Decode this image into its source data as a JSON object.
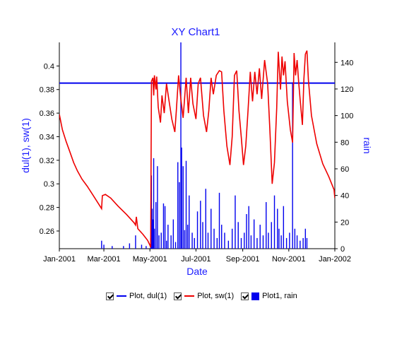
{
  "chart_data": {
    "type": "line",
    "title": "XY Chart1",
    "xlabel": "Date",
    "ylabel": "dul(1), sw(1)",
    "y2label": "rain",
    "x_range": [
      "2001-01-01",
      "2002-01-01"
    ],
    "x_ticks": [
      "Jan-2001",
      "Mar-2001",
      "May-2001",
      "Jul-2001",
      "Sep-2001",
      "Nov-2001",
      "Jan-2002"
    ],
    "ylim": [
      0.245,
      0.42
    ],
    "y_ticks": [
      "0.26",
      "0.28",
      "0.3",
      "0.32",
      "0.34",
      "0.36",
      "0.38",
      "0.4"
    ],
    "y2lim": [
      0,
      155
    ],
    "y2_ticks": [
      "0",
      "20",
      "40",
      "60",
      "80",
      "100",
      "120",
      "140"
    ],
    "grid": false,
    "legend_position": "bottom",
    "series": [
      {
        "name": "Plot, dul(1)",
        "axis": "left",
        "type": "line",
        "color": "#0000ee",
        "points": [
          [
            "2001-01-01",
            0.3855
          ],
          [
            "2002-01-01",
            0.3855
          ]
        ]
      },
      {
        "name": "Plot, sw(1)",
        "axis": "left",
        "type": "line",
        "color": "#ee0000",
        "points": [
          [
            "2001-01-01",
            0.359
          ],
          [
            "2001-01-05",
            0.346
          ],
          [
            "2001-01-10",
            0.336
          ],
          [
            "2001-01-15",
            0.327
          ],
          [
            "2001-01-20",
            0.318
          ],
          [
            "2001-01-25",
            0.311
          ],
          [
            "2001-01-31",
            0.304
          ],
          [
            "2001-02-07",
            0.298
          ],
          [
            "2001-02-14",
            0.291
          ],
          [
            "2001-02-21",
            0.284
          ],
          [
            "2001-02-26",
            0.279
          ],
          [
            "2001-02-27",
            0.29
          ],
          [
            "2001-03-03",
            0.291
          ],
          [
            "2001-03-10",
            0.288
          ],
          [
            "2001-03-20",
            0.281
          ],
          [
            "2001-03-31",
            0.274
          ],
          [
            "2001-04-10",
            0.267
          ],
          [
            "2001-04-12",
            0.265
          ],
          [
            "2001-04-13",
            0.272
          ],
          [
            "2001-04-15",
            0.262
          ],
          [
            "2001-04-22",
            0.257
          ],
          [
            "2001-04-28",
            0.252
          ],
          [
            "2001-05-01",
            0.248
          ],
          [
            "2001-05-02",
            0.246
          ],
          [
            "2001-05-03",
            0.387
          ],
          [
            "2001-05-05",
            0.39
          ],
          [
            "2001-05-06",
            0.375
          ],
          [
            "2001-05-07",
            0.392
          ],
          [
            "2001-05-09",
            0.38
          ],
          [
            "2001-05-10",
            0.391
          ],
          [
            "2001-05-12",
            0.365
          ],
          [
            "2001-05-15",
            0.352
          ],
          [
            "2001-05-17",
            0.375
          ],
          [
            "2001-05-20",
            0.36
          ],
          [
            "2001-05-23",
            0.385
          ],
          [
            "2001-05-26",
            0.372
          ],
          [
            "2001-05-30",
            0.355
          ],
          [
            "2001-06-03",
            0.344
          ],
          [
            "2001-06-05",
            0.362
          ],
          [
            "2001-06-08",
            0.392
          ],
          [
            "2001-06-11",
            0.372
          ],
          [
            "2001-06-14",
            0.356
          ],
          [
            "2001-06-16",
            0.373
          ],
          [
            "2001-06-18",
            0.39
          ],
          [
            "2001-06-21",
            0.36
          ],
          [
            "2001-06-24",
            0.39
          ],
          [
            "2001-06-27",
            0.368
          ],
          [
            "2001-07-01",
            0.355
          ],
          [
            "2001-07-04",
            0.385
          ],
          [
            "2001-07-07",
            0.39
          ],
          [
            "2001-07-11",
            0.358
          ],
          [
            "2001-07-15",
            0.344
          ],
          [
            "2001-07-18",
            0.362
          ],
          [
            "2001-07-21",
            0.39
          ],
          [
            "2001-07-24",
            0.376
          ],
          [
            "2001-07-28",
            0.392
          ],
          [
            "2001-08-01",
            0.396
          ],
          [
            "2001-08-04",
            0.395
          ],
          [
            "2001-08-07",
            0.362
          ],
          [
            "2001-08-11",
            0.332
          ],
          [
            "2001-08-15",
            0.316
          ],
          [
            "2001-08-18",
            0.34
          ],
          [
            "2001-08-21",
            0.392
          ],
          [
            "2001-08-24",
            0.396
          ],
          [
            "2001-08-27",
            0.362
          ],
          [
            "2001-08-30",
            0.34
          ],
          [
            "2001-09-02",
            0.316
          ],
          [
            "2001-09-05",
            0.332
          ],
          [
            "2001-09-08",
            0.362
          ],
          [
            "2001-09-11",
            0.395
          ],
          [
            "2001-09-14",
            0.37
          ],
          [
            "2001-09-17",
            0.395
          ],
          [
            "2001-09-20",
            0.376
          ],
          [
            "2001-09-23",
            0.398
          ],
          [
            "2001-09-26",
            0.372
          ],
          [
            "2001-09-30",
            0.405
          ],
          [
            "2001-10-04",
            0.385
          ],
          [
            "2001-10-07",
            0.345
          ],
          [
            "2001-10-10",
            0.3
          ],
          [
            "2001-10-13",
            0.318
          ],
          [
            "2001-10-16",
            0.364
          ],
          [
            "2001-10-18",
            0.412
          ],
          [
            "2001-10-21",
            0.38
          ],
          [
            "2001-10-23",
            0.408
          ],
          [
            "2001-10-25",
            0.392
          ],
          [
            "2001-10-27",
            0.404
          ],
          [
            "2001-10-30",
            0.37
          ],
          [
            "2001-11-03",
            0.346
          ],
          [
            "2001-11-06",
            0.335
          ],
          [
            "2001-11-08",
            0.411
          ],
          [
            "2001-11-10",
            0.392
          ],
          [
            "2001-11-12",
            0.405
          ],
          [
            "2001-11-14",
            0.387
          ],
          [
            "2001-11-16",
            0.372
          ],
          [
            "2001-11-19",
            0.35
          ],
          [
            "2001-11-21",
            0.389
          ],
          [
            "2001-11-23",
            0.41
          ],
          [
            "2001-11-25",
            0.413
          ],
          [
            "2001-11-27",
            0.388
          ],
          [
            "2001-12-01",
            0.358
          ],
          [
            "2001-12-08",
            0.334
          ],
          [
            "2001-12-16",
            0.317
          ],
          [
            "2001-12-24",
            0.306
          ],
          [
            "2001-12-31",
            0.295
          ],
          [
            "2002-01-01",
            0.288
          ]
        ]
      },
      {
        "name": "Plot1, rain",
        "axis": "right",
        "type": "bar",
        "color": "#0000ee",
        "points": [
          [
            "2001-02-26",
            6
          ],
          [
            "2001-03-01",
            3
          ],
          [
            "2001-03-12",
            2
          ],
          [
            "2001-03-27",
            2
          ],
          [
            "2001-04-04",
            4
          ],
          [
            "2001-04-12",
            10
          ],
          [
            "2001-04-20",
            3
          ],
          [
            "2001-04-26",
            2
          ],
          [
            "2001-05-02",
            8
          ],
          [
            "2001-05-03",
            55
          ],
          [
            "2001-05-04",
            30
          ],
          [
            "2001-05-05",
            22
          ],
          [
            "2001-05-06",
            68
          ],
          [
            "2001-05-07",
            15
          ],
          [
            "2001-05-09",
            35
          ],
          [
            "2001-05-11",
            62
          ],
          [
            "2001-05-13",
            10
          ],
          [
            "2001-05-16",
            12
          ],
          [
            "2001-05-19",
            34
          ],
          [
            "2001-05-21",
            32
          ],
          [
            "2001-05-23",
            6
          ],
          [
            "2001-05-25",
            18
          ],
          [
            "2001-05-29",
            10
          ],
          [
            "2001-06-01",
            22
          ],
          [
            "2001-06-04",
            5
          ],
          [
            "2001-06-07",
            65
          ],
          [
            "2001-06-09",
            50
          ],
          [
            "2001-06-11",
            155
          ],
          [
            "2001-06-12",
            76
          ],
          [
            "2001-06-14",
            62
          ],
          [
            "2001-06-16",
            14
          ],
          [
            "2001-06-18",
            66
          ],
          [
            "2001-06-20",
            18
          ],
          [
            "2001-06-22",
            40
          ],
          [
            "2001-06-26",
            12
          ],
          [
            "2001-06-29",
            8
          ],
          [
            "2001-07-03",
            28
          ],
          [
            "2001-07-07",
            36
          ],
          [
            "2001-07-10",
            20
          ],
          [
            "2001-07-14",
            45
          ],
          [
            "2001-07-17",
            12
          ],
          [
            "2001-07-21",
            30
          ],
          [
            "2001-07-25",
            15
          ],
          [
            "2001-07-29",
            8
          ],
          [
            "2001-08-01",
            42
          ],
          [
            "2001-08-04",
            18
          ],
          [
            "2001-08-08",
            12
          ],
          [
            "2001-08-13",
            6
          ],
          [
            "2001-08-18",
            15
          ],
          [
            "2001-08-22",
            40
          ],
          [
            "2001-08-26",
            20
          ],
          [
            "2001-08-30",
            8
          ],
          [
            "2001-09-03",
            12
          ],
          [
            "2001-09-06",
            26
          ],
          [
            "2001-09-09",
            32
          ],
          [
            "2001-09-12",
            10
          ],
          [
            "2001-09-16",
            22
          ],
          [
            "2001-09-20",
            8
          ],
          [
            "2001-09-24",
            18
          ],
          [
            "2001-09-28",
            10
          ],
          [
            "2001-10-02",
            35
          ],
          [
            "2001-10-05",
            12
          ],
          [
            "2001-10-09",
            20
          ],
          [
            "2001-10-13",
            40
          ],
          [
            "2001-10-17",
            30
          ],
          [
            "2001-10-19",
            15
          ],
          [
            "2001-10-22",
            10
          ],
          [
            "2001-10-25",
            32
          ],
          [
            "2001-10-29",
            8
          ],
          [
            "2001-11-02",
            12
          ],
          [
            "2001-11-06",
            125
          ],
          [
            "2001-11-09",
            15
          ],
          [
            "2001-11-12",
            10
          ],
          [
            "2001-11-16",
            6
          ],
          [
            "2001-11-20",
            8
          ],
          [
            "2001-11-23",
            15
          ],
          [
            "2001-11-25",
            8
          ]
        ]
      }
    ]
  },
  "legend": {
    "items": [
      {
        "label": "Plot, dul(1)",
        "color": "#0000ee",
        "kind": "line"
      },
      {
        "label": "Plot, sw(1)",
        "color": "#ee0000",
        "kind": "line"
      },
      {
        "label": "Plot1, rain",
        "color": "#0000ee",
        "kind": "box"
      }
    ]
  }
}
